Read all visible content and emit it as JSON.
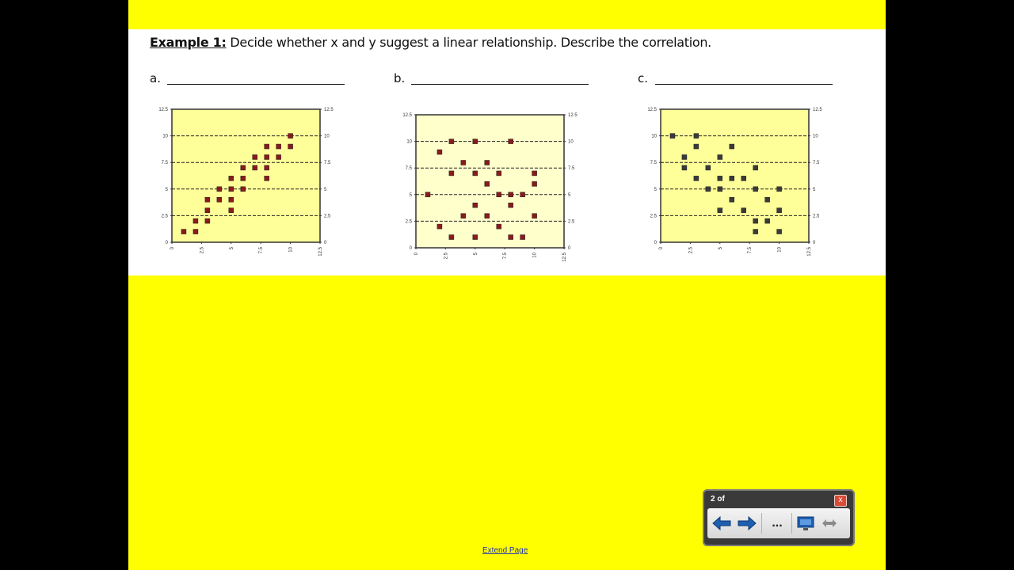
{
  "heading": {
    "lead": "Example 1:",
    "text": " Decide whether x and y suggest a linear relationship.  Describe the correlation."
  },
  "blanks": [
    {
      "letter": "a."
    },
    {
      "letter": "b."
    },
    {
      "letter": "c."
    }
  ],
  "charts": {
    "ticks": [
      "0",
      "2.5",
      "5",
      "7.5",
      "10",
      "12.5"
    ],
    "x_range": [
      0,
      12.5
    ],
    "y_range": [
      0,
      12.5
    ],
    "a": {
      "plot_bg": "#ffff99",
      "marker_color": "#8b1a1a",
      "points": [
        [
          1,
          1
        ],
        [
          2,
          1
        ],
        [
          2,
          2
        ],
        [
          3,
          2
        ],
        [
          3,
          3
        ],
        [
          3,
          4
        ],
        [
          4,
          4
        ],
        [
          4,
          5
        ],
        [
          5,
          3
        ],
        [
          5,
          4
        ],
        [
          5,
          5
        ],
        [
          5,
          6
        ],
        [
          6,
          5
        ],
        [
          6,
          6
        ],
        [
          6,
          7
        ],
        [
          7,
          7
        ],
        [
          7,
          8
        ],
        [
          8,
          6
        ],
        [
          8,
          7
        ],
        [
          8,
          8
        ],
        [
          8,
          9
        ],
        [
          9,
          8
        ],
        [
          9,
          9
        ],
        [
          10,
          9
        ],
        [
          10,
          10
        ]
      ]
    },
    "b": {
      "plot_bg": "#ffffcc",
      "marker_color": "#8b1a1a",
      "points": [
        [
          1,
          5
        ],
        [
          2,
          2
        ],
        [
          2,
          9
        ],
        [
          3,
          1
        ],
        [
          3,
          7
        ],
        [
          3,
          10
        ],
        [
          4,
          3
        ],
        [
          4,
          8
        ],
        [
          5,
          1
        ],
        [
          5,
          4
        ],
        [
          5,
          7
        ],
        [
          5,
          10
        ],
        [
          6,
          3
        ],
        [
          6,
          6
        ],
        [
          6,
          8
        ],
        [
          7,
          2
        ],
        [
          7,
          5
        ],
        [
          7,
          7
        ],
        [
          8,
          1
        ],
        [
          8,
          4
        ],
        [
          8,
          5
        ],
        [
          8,
          10
        ],
        [
          9,
          1
        ],
        [
          9,
          5
        ],
        [
          10,
          3
        ],
        [
          10,
          6
        ],
        [
          10,
          7
        ]
      ]
    },
    "c": {
      "plot_bg": "#ffff99",
      "marker_color": "#3a3a3a",
      "points": [
        [
          1,
          10
        ],
        [
          2,
          7
        ],
        [
          2,
          8
        ],
        [
          3,
          6
        ],
        [
          3,
          9
        ],
        [
          3,
          10
        ],
        [
          4,
          5
        ],
        [
          4,
          7
        ],
        [
          5,
          3
        ],
        [
          5,
          5
        ],
        [
          5,
          6
        ],
        [
          5,
          8
        ],
        [
          6,
          4
        ],
        [
          6,
          6
        ],
        [
          6,
          9
        ],
        [
          7,
          3
        ],
        [
          7,
          6
        ],
        [
          8,
          1
        ],
        [
          8,
          2
        ],
        [
          8,
          5
        ],
        [
          8,
          7
        ],
        [
          9,
          2
        ],
        [
          9,
          4
        ],
        [
          10,
          1
        ],
        [
          10,
          3
        ],
        [
          10,
          5
        ]
      ]
    }
  },
  "footer": {
    "extend_link": "Extend Page"
  },
  "toolbar": {
    "page_count": "2 of",
    "close_symbol": "x",
    "more_label": "...",
    "icons": [
      "left-arrow-icon",
      "right-arrow-icon",
      "more-icon",
      "screen-icon",
      "resize-icon"
    ],
    "colors": {
      "arrow": "#1f5fb0",
      "bg": "#3a3a3a"
    }
  }
}
